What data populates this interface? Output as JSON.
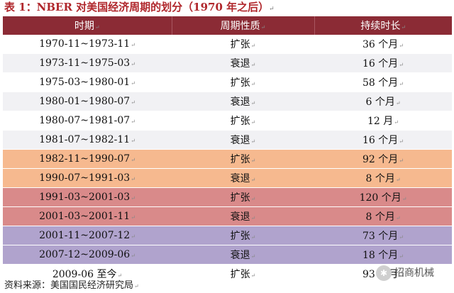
{
  "title": "表 1：NBER 对美国经济周期的划分（1970 年之后）",
  "return_mark": "↵",
  "table": {
    "headers": [
      "时期",
      "周期性质",
      "持续时长"
    ],
    "rows": [
      {
        "period": "1970-11~1973-11",
        "nature": "扩张",
        "duration": "36 个月",
        "tone": "white"
      },
      {
        "period": "1973-11~1975-03",
        "nature": "衰退",
        "duration": "16 个月",
        "tone": "gray"
      },
      {
        "period": "1975-03~1980-01",
        "nature": "扩张",
        "duration": "58 个月",
        "tone": "white"
      },
      {
        "period": "1980-01~1980-07",
        "nature": "衰退",
        "duration": "6 个月",
        "tone": "gray"
      },
      {
        "period": "1980-07~1981-07",
        "nature": "扩张",
        "duration": "12 月",
        "tone": "white"
      },
      {
        "period": "1981-07~1982-11",
        "nature": "衰退",
        "duration": "16 个月",
        "tone": "gray"
      },
      {
        "period": "1982-11~1990-07",
        "nature": "扩张",
        "duration": "92 个月",
        "tone": "orange"
      },
      {
        "period": "1990-07~1991-03",
        "nature": "衰退",
        "duration": "8 个月",
        "tone": "orange"
      },
      {
        "period": "1991-03~2001-03",
        "nature": "扩张",
        "duration": "120 个月",
        "tone": "red"
      },
      {
        "period": "2001-03~2001-11",
        "nature": "衰退",
        "duration": "8 个月",
        "tone": "red"
      },
      {
        "period": "2001-11~2007-12",
        "nature": "扩张",
        "duration": "73 个月",
        "tone": "purple"
      },
      {
        "period": "2007-12~2009-06",
        "nature": "衰退",
        "duration": "18 个月",
        "tone": "purple"
      },
      {
        "period": "2009-06 至今",
        "nature": "扩张",
        "duration": "93 个月",
        "tone": "last"
      }
    ]
  },
  "source": "资料来源：美国国民经济研究局",
  "watermark": {
    "text": "招商机械",
    "icon": "wechat-icon"
  },
  "colors": {
    "title": "#b0272c",
    "header_bg": "#8b2b35",
    "gray": "#f1f1f4",
    "orange": "#f6b98f",
    "red": "#d98a8a",
    "purple": "#b0a3cd"
  }
}
